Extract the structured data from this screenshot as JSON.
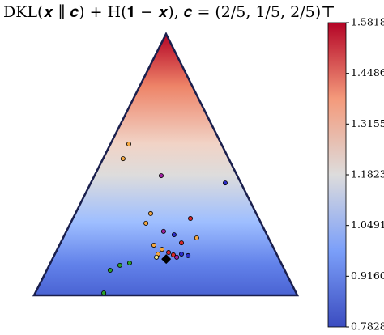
{
  "chart_data": {
    "type": "scatter",
    "title": "DKL(𝒙 ∥ 𝒄) + H(𝟏 − 𝒙),    𝒄 = (2/5, 1/5, 2/5)⊤",
    "x": [
      0.36,
      0.338,
      0.483,
      0.726,
      0.443,
      0.594,
      0.425,
      0.492,
      0.532,
      0.618,
      0.56,
      0.455,
      0.486,
      0.471,
      0.511,
      0.529,
      0.56,
      0.585,
      0.465,
      0.542,
      0.363,
      0.326,
      0.289,
      0.265
    ],
    "y": [
      0.579,
      0.523,
      0.458,
      0.43,
      0.313,
      0.294,
      0.276,
      0.245,
      0.232,
      0.22,
      0.201,
      0.192,
      0.176,
      0.158,
      0.164,
      0.155,
      0.158,
      0.152,
      0.146,
      0.146,
      0.124,
      0.115,
      0.096,
      0.009
    ],
    "colors": [
      "#f4a742",
      "#f4a742",
      "#a020a0",
      "#2b2bc8",
      "#f4a742",
      "#d62728",
      "#f4a742",
      "#a020a0",
      "#2b2bc8",
      "#f4a742",
      "#d62728",
      "#f4a742",
      "#f4a742",
      "#f4a742",
      "#d62728",
      "#d62728",
      "#2b2bc8",
      "#2b2bc8",
      "#f0e68c",
      "#a020a0",
      "#2ca02c",
      "#2ca02c",
      "#2ca02c",
      "#2ca02c"
    ],
    "center": {
      "x": 0.502,
      "y": 0.139
    },
    "colormap": [
      "#3b4cc0",
      "#7b9ff9",
      "#dddcdc",
      "#f49a7b",
      "#b40426"
    ],
    "clim": [
      0.7828,
      1.5818
    ],
    "cticks": [
      0.7828,
      {
        "value": 0.916,
        "label": "0.9160"
      },
      1.0491,
      1.1823,
      1.3155,
      1.4486,
      1.5818
    ]
  }
}
